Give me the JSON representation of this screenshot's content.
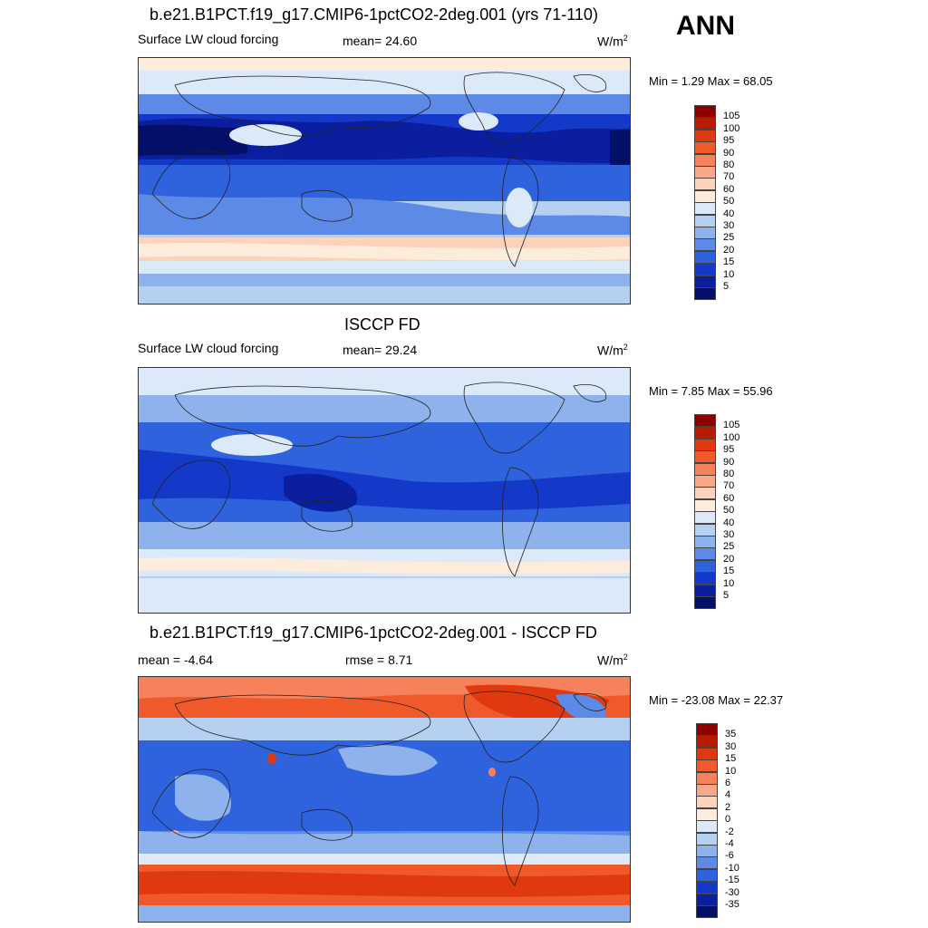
{
  "season": "ANN",
  "panels": [
    {
      "title": "b.e21.B1PCT.f19_g17.CMIP6-1pctCO2-2deg.001 (yrs 71-110)",
      "left_label": "Surface LW cloud forcing",
      "center_label": "mean=  24.60",
      "units": "W/m",
      "units_sup": "2",
      "minmax": "Min =   1.29 Max =  68.05",
      "colorbar": {
        "labels": [
          "105",
          "100",
          "95",
          "90",
          "80",
          "70",
          "60",
          "50",
          "40",
          "30",
          "25",
          "20",
          "15",
          "10",
          "5"
        ],
        "colors": [
          "#8c0000",
          "#b81c00",
          "#e0390f",
          "#f05a2a",
          "#f5825a",
          "#f8a889",
          "#fbd3bd",
          "#fdebdc",
          "#dbe9f8",
          "#b6d0f2",
          "#8db2ec",
          "#5c8ae6",
          "#2f63de",
          "#1438c8",
          "#0b1e9e",
          "#041068"
        ]
      }
    },
    {
      "title": "ISCCP FD",
      "left_label": "Surface LW cloud forcing",
      "center_label": "mean=  29.24",
      "units": "W/m",
      "units_sup": "2",
      "minmax": "Min =   7.85 Max =  55.96",
      "colorbar": {
        "labels": [
          "105",
          "100",
          "95",
          "90",
          "80",
          "70",
          "60",
          "50",
          "40",
          "30",
          "25",
          "20",
          "15",
          "10",
          "5"
        ],
        "colors": [
          "#8c0000",
          "#b81c00",
          "#e0390f",
          "#f05a2a",
          "#f5825a",
          "#f8a889",
          "#fbd3bd",
          "#fdebdc",
          "#dbe9f8",
          "#b6d0f2",
          "#8db2ec",
          "#5c8ae6",
          "#2f63de",
          "#1438c8",
          "#0b1e9e",
          "#041068"
        ]
      }
    },
    {
      "title": "b.e21.B1PCT.f19_g17.CMIP6-1pctCO2-2deg.001 - ISCCP FD",
      "left_label": "mean =  -4.64",
      "center_label": "rmse =   8.71",
      "units": "W/m",
      "units_sup": "2",
      "minmax": "Min = -23.08 Max =  22.37",
      "colorbar": {
        "labels": [
          "35",
          "30",
          "15",
          "10",
          "6",
          "4",
          "2",
          "0",
          "-2",
          "-4",
          "-6",
          "-10",
          "-15",
          "-30",
          "-35"
        ],
        "colors": [
          "#8c0000",
          "#b81c00",
          "#e0390f",
          "#f05a2a",
          "#f5825a",
          "#f8a889",
          "#fbd3bd",
          "#fdebdc",
          "#dbe9f8",
          "#b6d0f2",
          "#8db2ec",
          "#5c8ae6",
          "#2f63de",
          "#1438c8",
          "#0b1e9e",
          "#041068"
        ]
      }
    }
  ]
}
